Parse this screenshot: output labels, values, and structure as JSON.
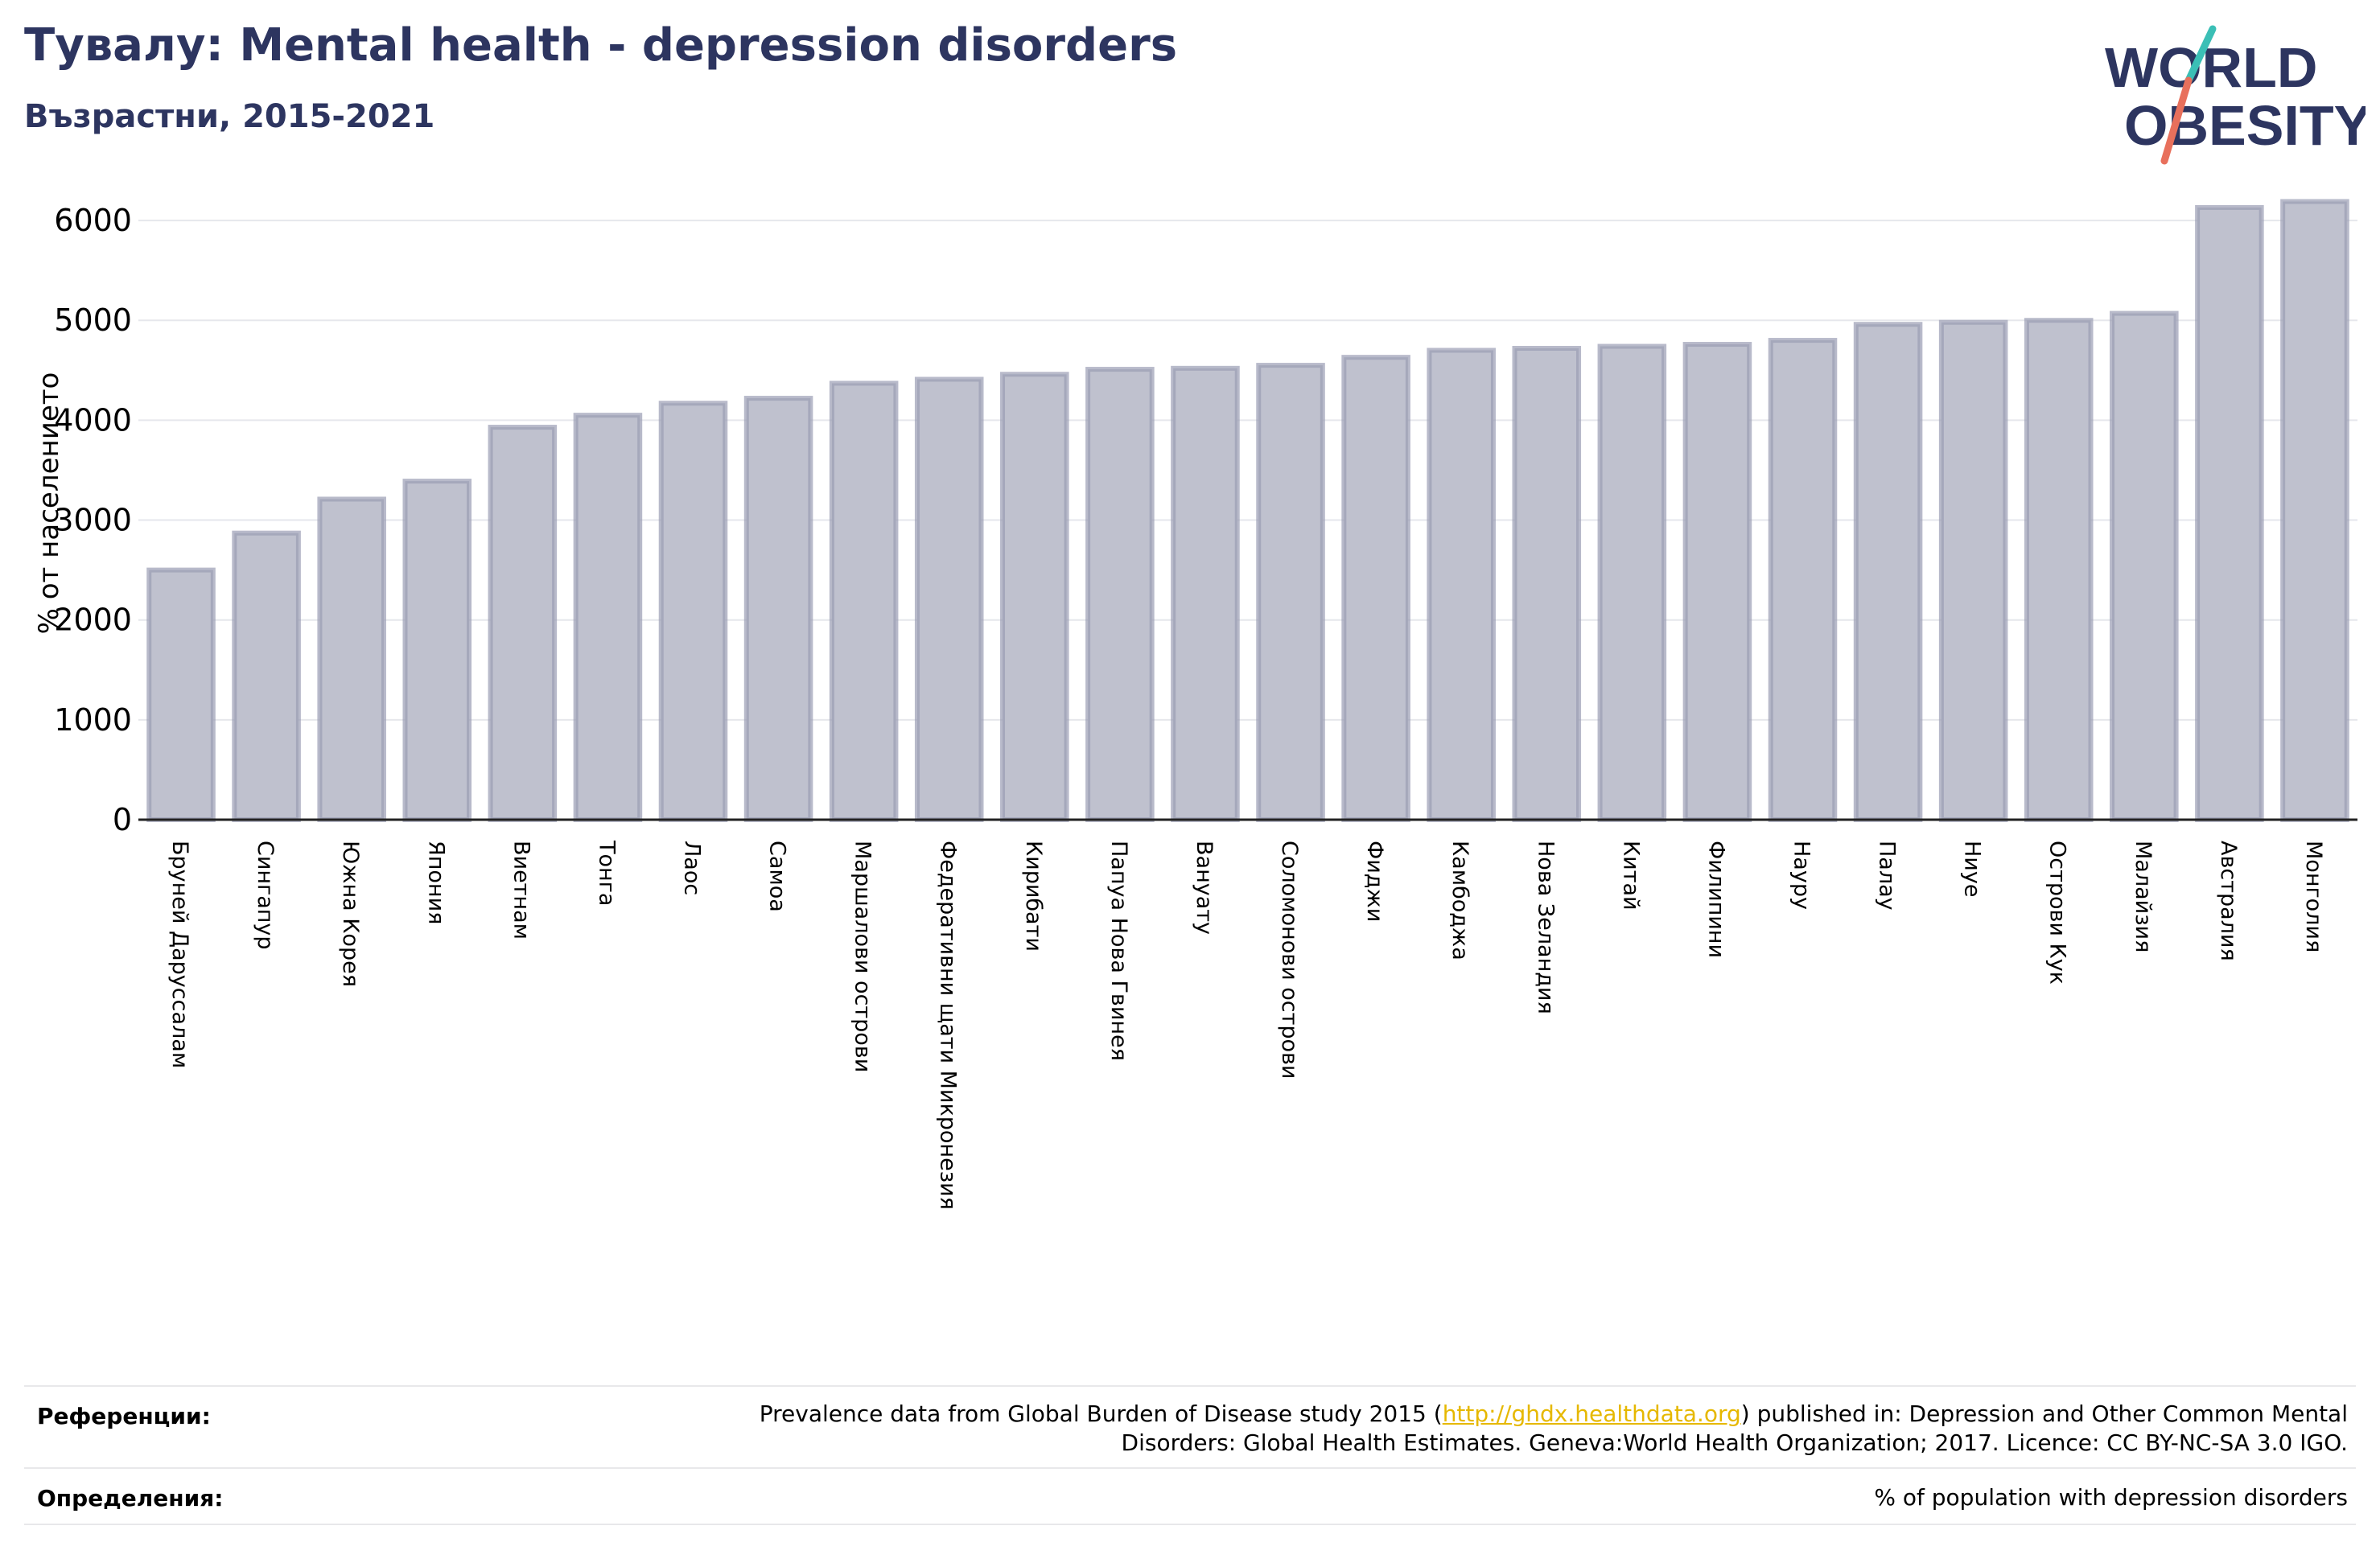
{
  "header": {
    "title": "Тувалу: Mental health - depression disorders",
    "subtitle": "Възрастни, 2015-2021"
  },
  "logo": {
    "line1": "WORLD",
    "line2": "OBESITY",
    "name": "world-obesity-logo"
  },
  "chart_data": {
    "type": "bar",
    "title": "Тувалу: Mental health - depression disorders",
    "subtitle": "Възрастни, 2015-2021",
    "ylabel": "% от населението",
    "xlabel": "",
    "ylim": [
      0,
      6500
    ],
    "yticks": [
      0,
      1000,
      2000,
      3000,
      4000,
      5000,
      6000
    ],
    "grid": true,
    "categories": [
      "Бруней Даруссалам",
      "Сингапур",
      "Южна Корея",
      "Япония",
      "Виетнам",
      "Тонга",
      "Лаос",
      "Самоа",
      "Маршалови острови",
      "Федеративни щати Микронезия",
      "Кирибати",
      "Папуа Нова Гвинея",
      "Вануату",
      "Соломонови острови",
      "Фиджи",
      "Камбоджа",
      "Нова Зеландия",
      "Китай",
      "Филипини",
      "Науру",
      "Палау",
      "Ниуе",
      "Острови Кук",
      "Малайзия",
      "Австралия",
      "Монголия"
    ],
    "values": [
      2500,
      2870,
      3210,
      3390,
      3930,
      4050,
      4170,
      4220,
      4370,
      4410,
      4460,
      4510,
      4520,
      4550,
      4630,
      4700,
      4720,
      4740,
      4760,
      4800,
      4960,
      4980,
      5000,
      5070,
      6130,
      6190
    ],
    "bar_color": "#bfc1ce",
    "bar_edge_color": "#9a9db4"
  },
  "footer": {
    "references_label": "Референции:",
    "references_text_1": "Prevalence data from Global Burden of Disease study 2015 (",
    "references_link": "http://ghdx.healthdata.org",
    "references_text_2": ") published in: Depression and Other Common Mental",
    "references_text_3": "Disorders: Global Health Estimates. Geneva:World Health Organization; 2017. Licence: CC BY-NC-SA 3.0 IGO.",
    "definitions_label": "Определения:",
    "definitions_text": "% of population with depression disorders"
  },
  "colors": {
    "title": "#2d3560",
    "link": "#e6b800",
    "logo_teal": "#3bbfb6",
    "logo_coral": "#e8705c"
  }
}
